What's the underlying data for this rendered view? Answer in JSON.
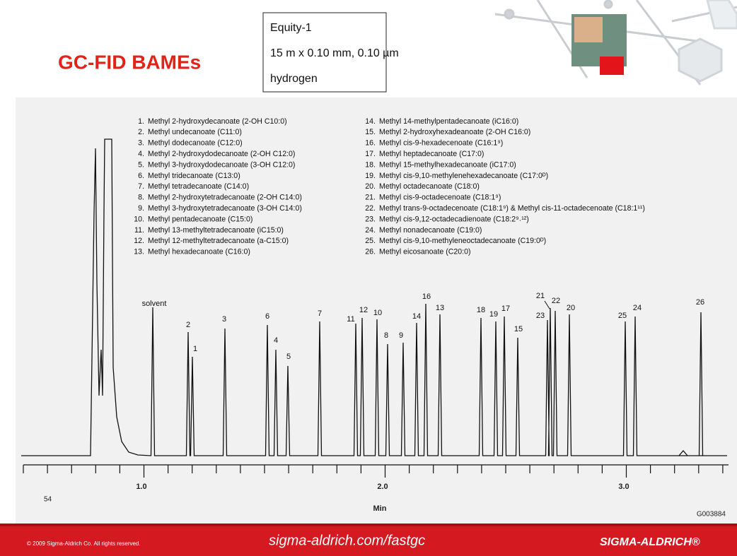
{
  "header": {
    "title": "GC-FID BAMEs",
    "conditions": [
      "Equity-1",
      "15 m x 0.10 mm, 0.10 µm",
      "hydrogen"
    ]
  },
  "legend": [
    {
      "number": "1.",
      "name": "Methyl 2-hydroxydecanoate (2-OH C10:0)"
    },
    {
      "number": "2.",
      "name": "Methyl undecanoate (C11:0)"
    },
    {
      "number": "3.",
      "name": "Methyl dodecanoate (C12:0)"
    },
    {
      "number": "4.",
      "name": "Methyl 2-hydroxydodecanoate (2-OH C12:0)"
    },
    {
      "number": "5.",
      "name": "Methyl 3-hydroxydodecanoate (3-OH C12:0)"
    },
    {
      "number": "6.",
      "name": "Methyl tridecanoate (C13:0)"
    },
    {
      "number": "7.",
      "name": "Methyl tetradecanoate (C14:0)"
    },
    {
      "number": "8.",
      "name": "Methyl 2-hydroxytetradecanoate (2-OH C14:0)"
    },
    {
      "number": "9.",
      "name": "Methyl 3-hydroxytetradecanoate (3-OH C14:0)"
    },
    {
      "number": "10.",
      "name": "Methyl pentadecanoate (C15:0)"
    },
    {
      "number": "11.",
      "name": "Methyl 13-methyltetradecanoate (iC15:0)"
    },
    {
      "number": "12.",
      "name": "Methyl 12-methyltetradecanoate (a-C15:0)"
    },
    {
      "number": "13.",
      "name": "Methyl hexadecanoate (C16:0)"
    },
    {
      "number": "14.",
      "name": "Methyl 14-methylpentadecanoate (iC16:0)"
    },
    {
      "number": "15.",
      "name": "Methyl 2-hydroxyhexadeanoate (2-OH C16:0)"
    },
    {
      "number": "16.",
      "name": "Methyl cis-9-hexadecenoate (C16:1⁹)"
    },
    {
      "number": "17.",
      "name": "Methyl heptadecanoate (C17:0)"
    },
    {
      "number": "18.",
      "name": "Methyl 15-methylhexadecanoate (iC17:0)"
    },
    {
      "number": "19.",
      "name": "Methyl cis-9,10-methylenehexadecanoate (C17:0ᴰ)"
    },
    {
      "number": "20.",
      "name": "Methyl octadecanoate (C18:0)"
    },
    {
      "number": "21.",
      "name": "Methyl cis-9-octadecenoate (C18:1⁹)"
    },
    {
      "number": "22.",
      "name": "Methyl trans-9-octadecenoate (C18:1⁹) & Methyl cis-11-octadecenoate (C18:1¹¹)"
    },
    {
      "number": "23.",
      "name": "Methyl cis-9,12-octadecadienoate (C18:2⁹˒¹²)"
    },
    {
      "number": "24.",
      "name": "Methyl nonadecanoate (C19:0)"
    },
    {
      "number": "25.",
      "name": "Methyl cis-9,10-methyleneoctadecanoate (C19:0ᴰ)"
    },
    {
      "number": "26.",
      "name": "Methyl eicosanoate (C20:0)"
    }
  ],
  "peak_labels": [
    "solvent",
    "2",
    "1",
    "3",
    "6",
    "4",
    "5",
    "7",
    "11",
    "12",
    "10",
    "8",
    "9",
    "14",
    "16",
    "13",
    "18",
    "19",
    "17",
    "15",
    "21",
    "23",
    "22",
    "20",
    "25",
    "24",
    "26"
  ],
  "axis": {
    "tick_labels": [
      "1.0",
      "2.0",
      "3.0"
    ],
    "label": "Min"
  },
  "page_number": "54",
  "figure_code": "G003884",
  "footer": {
    "copyright": "© 2009 Sigma-Aldrich Co. All rights reserved.",
    "url": "sigma-aldrich.com/fastgc",
    "brand": "SIGMA-ALDRICH®"
  }
}
